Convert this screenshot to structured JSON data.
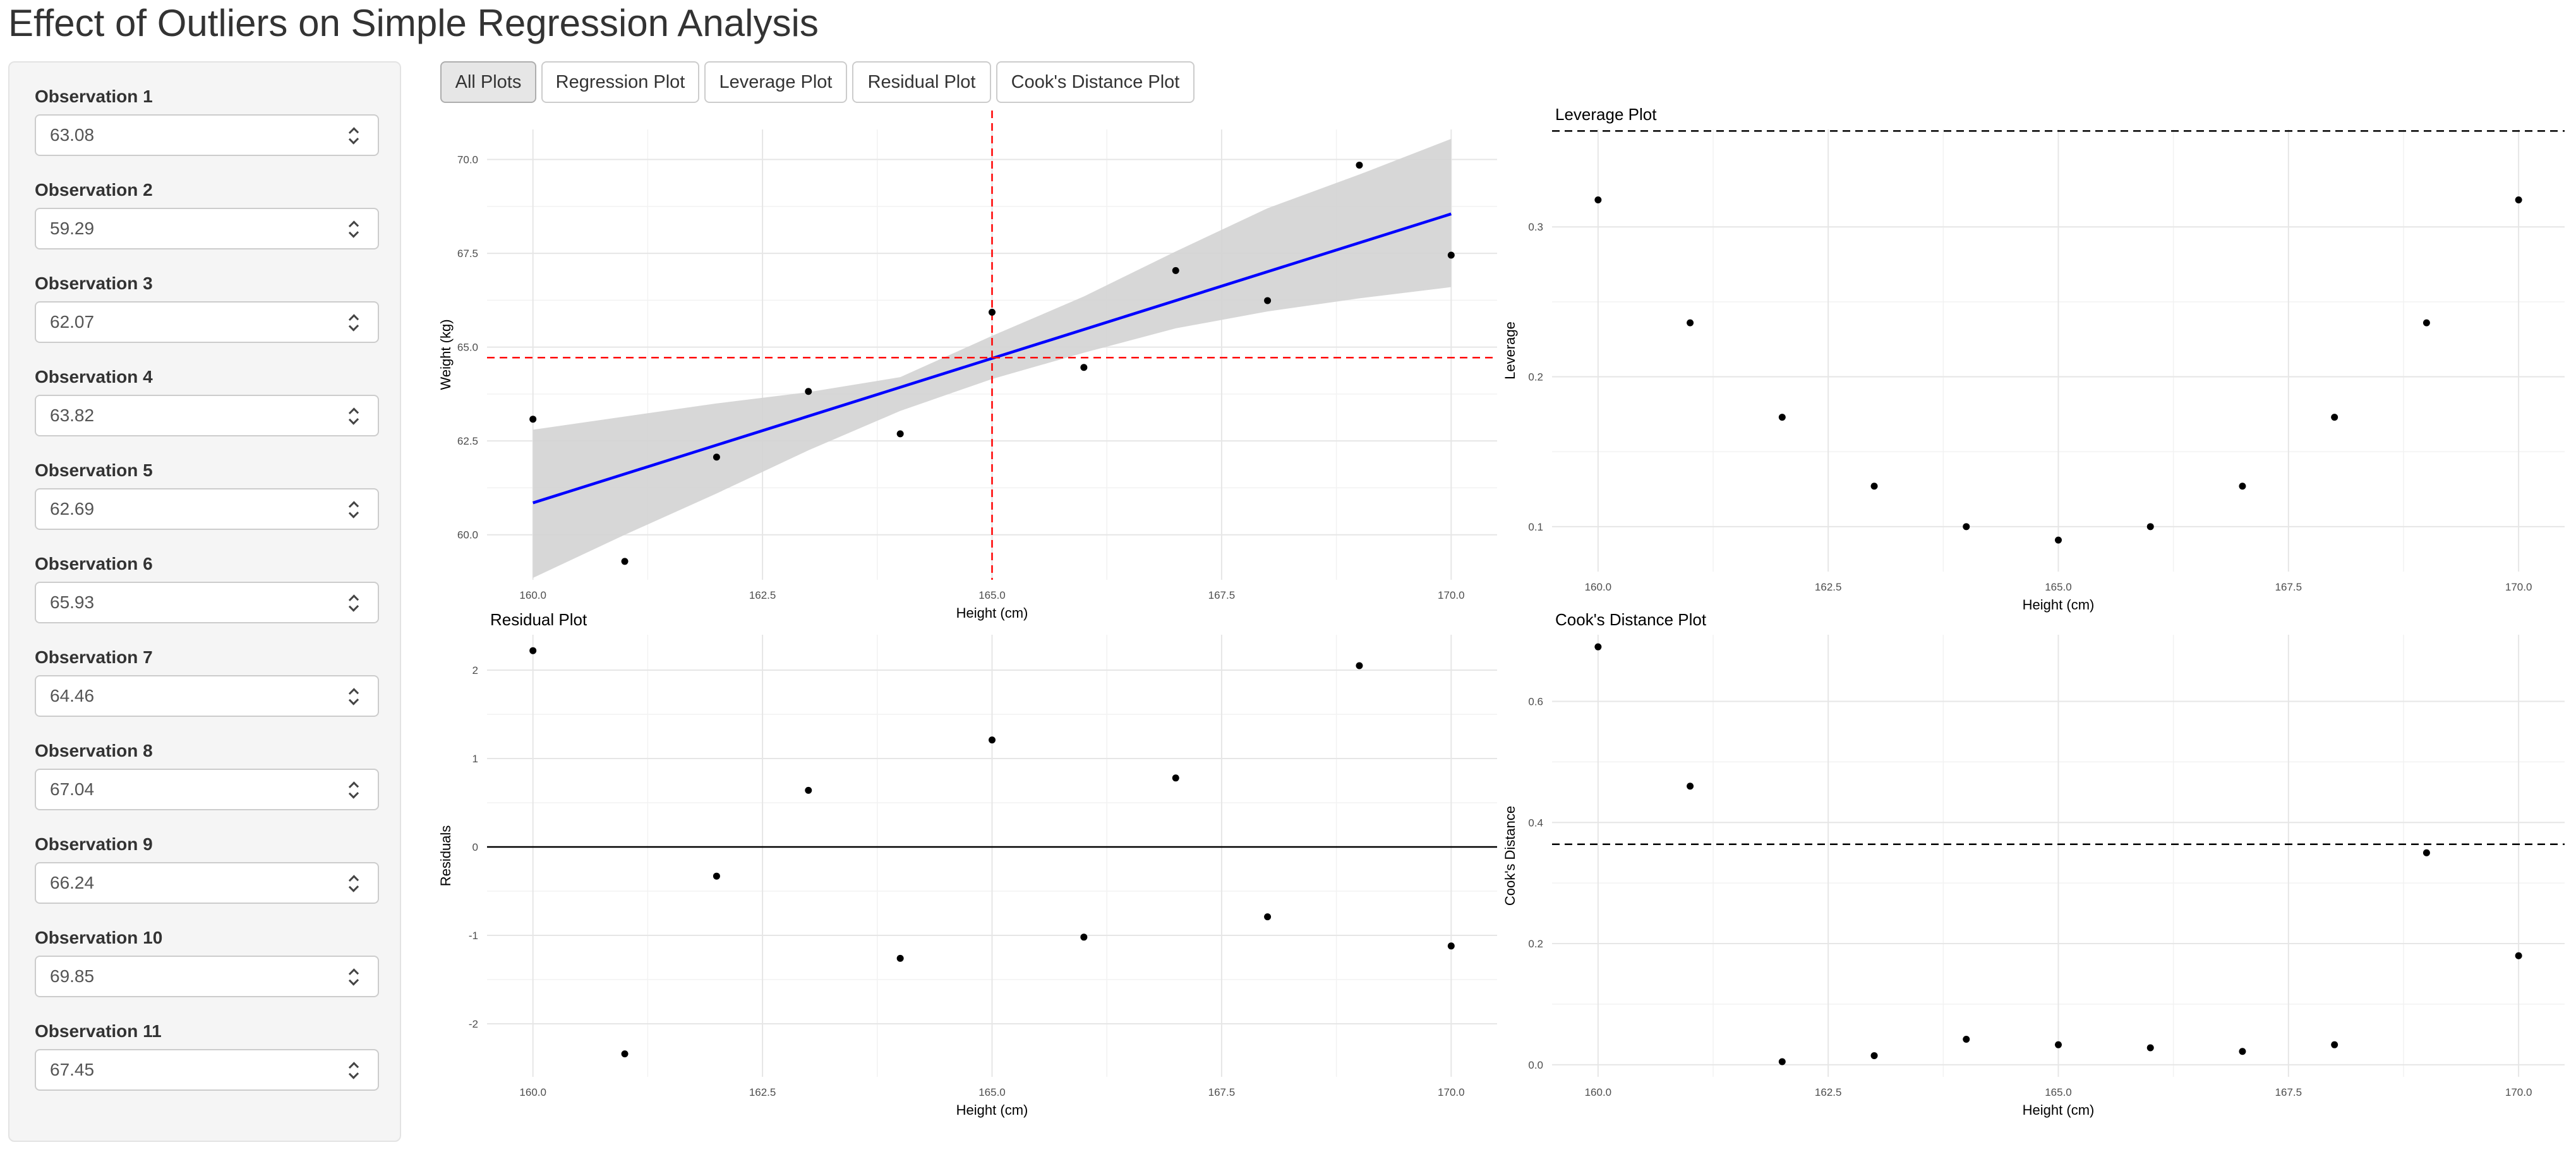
{
  "page": {
    "title": "Effect of Outliers on Simple Regression Analysis"
  },
  "sidebar": {
    "observations": [
      {
        "label": "Observation 1",
        "value": "63.08"
      },
      {
        "label": "Observation 2",
        "value": "59.29"
      },
      {
        "label": "Observation 3",
        "value": "62.07"
      },
      {
        "label": "Observation 4",
        "value": "63.82"
      },
      {
        "label": "Observation 5",
        "value": "62.69"
      },
      {
        "label": "Observation 6",
        "value": "65.93"
      },
      {
        "label": "Observation 7",
        "value": "64.46"
      },
      {
        "label": "Observation 8",
        "value": "67.04"
      },
      {
        "label": "Observation 9",
        "value": "66.24"
      },
      {
        "label": "Observation 10",
        "value": "69.85"
      },
      {
        "label": "Observation 11",
        "value": "67.45"
      }
    ]
  },
  "tabs": [
    {
      "label": "All Plots",
      "active": true
    },
    {
      "label": "Regression Plot",
      "active": false
    },
    {
      "label": "Leverage Plot",
      "active": false
    },
    {
      "label": "Residual Plot",
      "active": false
    },
    {
      "label": "Cook's Distance Plot",
      "active": false
    }
  ],
  "chart_data": [
    {
      "id": "regression",
      "type": "scatter",
      "title": "",
      "xlabel": "Height (cm)",
      "ylabel": "Weight (kg)",
      "xlim": [
        159.5,
        170.5
      ],
      "ylim": [
        58.8,
        70.8
      ],
      "x_ticks": [
        160,
        162.5,
        165,
        167.5,
        170
      ],
      "x_tick_labels": [
        "160.0",
        "162.5",
        "165.0",
        "167.5",
        "170.0"
      ],
      "y_ticks": [
        60,
        62.5,
        65,
        67.5,
        70
      ],
      "y_tick_labels": [
        "60.0",
        "62.5",
        "65.0",
        "67.5",
        "70.0"
      ],
      "x": [
        160,
        161,
        162,
        163,
        164,
        165,
        166,
        167,
        168,
        169,
        170
      ],
      "y": [
        63.08,
        59.29,
        62.07,
        63.82,
        62.69,
        65.93,
        64.46,
        67.04,
        66.24,
        69.85,
        67.45
      ],
      "fit_line": {
        "x": [
          160,
          170
        ],
        "y": [
          60.85,
          68.55
        ],
        "color": "#0000ff"
      },
      "confidence_band": {
        "x": [
          160,
          161,
          162,
          163,
          164,
          165,
          166,
          167,
          168,
          169,
          170
        ],
        "lower": [
          58.85,
          60.0,
          61.1,
          62.25,
          63.3,
          64.15,
          64.85,
          65.5,
          65.95,
          66.3,
          66.6
        ],
        "upper": [
          62.8,
          63.15,
          63.5,
          63.8,
          64.2,
          65.3,
          66.35,
          67.55,
          68.7,
          69.6,
          70.55
        ],
        "color": "#d3d3d3"
      },
      "reference_lines": [
        {
          "orientation": "vertical",
          "value": 165,
          "color": "#ff0000",
          "style": "dashed"
        },
        {
          "orientation": "horizontal",
          "value": 64.72,
          "color": "#ff0000",
          "style": "dashed"
        }
      ],
      "grid": true
    },
    {
      "id": "leverage",
      "type": "scatter",
      "title": "Leverage Plot",
      "xlabel": "Height (cm)",
      "ylabel": "Leverage",
      "xlim": [
        159.5,
        170.5
      ],
      "ylim": [
        0.07,
        0.365
      ],
      "x_ticks": [
        160,
        162.5,
        165,
        167.5,
        170
      ],
      "x_tick_labels": [
        "160.0",
        "162.5",
        "165.0",
        "167.5",
        "170.0"
      ],
      "y_ticks": [
        0.1,
        0.2,
        0.3
      ],
      "y_tick_labels": [
        "0.1",
        "0.2",
        "0.3"
      ],
      "x": [
        160,
        161,
        162,
        163,
        164,
        165,
        166,
        167,
        168,
        169,
        170
      ],
      "y": [
        0.318,
        0.236,
        0.173,
        0.127,
        0.1,
        0.091,
        0.1,
        0.127,
        0.173,
        0.236,
        0.318
      ],
      "reference_lines": [
        {
          "orientation": "horizontal",
          "value": 0.364,
          "color": "#000000",
          "style": "dashed"
        }
      ],
      "grid": true
    },
    {
      "id": "residual",
      "type": "scatter",
      "title": "Residual Plot",
      "xlabel": "Height (cm)",
      "ylabel": "Residuals",
      "xlim": [
        159.5,
        170.5
      ],
      "ylim": [
        -2.6,
        2.4
      ],
      "x_ticks": [
        160,
        162.5,
        165,
        167.5,
        170
      ],
      "x_tick_labels": [
        "160.0",
        "162.5",
        "165.0",
        "167.5",
        "170.0"
      ],
      "y_ticks": [
        -2,
        -1,
        0,
        1,
        2
      ],
      "y_tick_labels": [
        "-2",
        "-1",
        "0",
        "1",
        "2"
      ],
      "x": [
        160,
        161,
        162,
        163,
        164,
        165,
        166,
        167,
        168,
        169,
        170
      ],
      "y": [
        2.22,
        -2.34,
        -0.33,
        0.64,
        -1.26,
        1.21,
        -1.02,
        0.78,
        -0.79,
        2.05,
        -1.12
      ],
      "reference_lines": [
        {
          "orientation": "horizontal",
          "value": 0,
          "color": "#000000",
          "style": "solid"
        }
      ],
      "grid": true
    },
    {
      "id": "cooks",
      "type": "scatter",
      "title": "Cook's Distance Plot",
      "xlabel": "Height (cm)",
      "ylabel": "Cook's Distance",
      "xlim": [
        159.5,
        170.5
      ],
      "ylim": [
        -0.02,
        0.71
      ],
      "x_ticks": [
        160,
        162.5,
        165,
        167.5,
        170
      ],
      "x_tick_labels": [
        "160.0",
        "162.5",
        "165.0",
        "167.5",
        "170.0"
      ],
      "y_ticks": [
        0,
        0.2,
        0.4,
        0.6
      ],
      "y_tick_labels": [
        "0.0",
        "0.2",
        "0.4",
        "0.6"
      ],
      "x": [
        160,
        161,
        162,
        163,
        164,
        165,
        166,
        167,
        168,
        169,
        170
      ],
      "y": [
        0.69,
        0.46,
        0.005,
        0.015,
        0.042,
        0.033,
        0.028,
        0.022,
        0.033,
        0.35,
        0.18
      ],
      "reference_lines": [
        {
          "orientation": "horizontal",
          "value": 0.364,
          "color": "#000000",
          "style": "dashed"
        }
      ],
      "grid": true
    }
  ]
}
